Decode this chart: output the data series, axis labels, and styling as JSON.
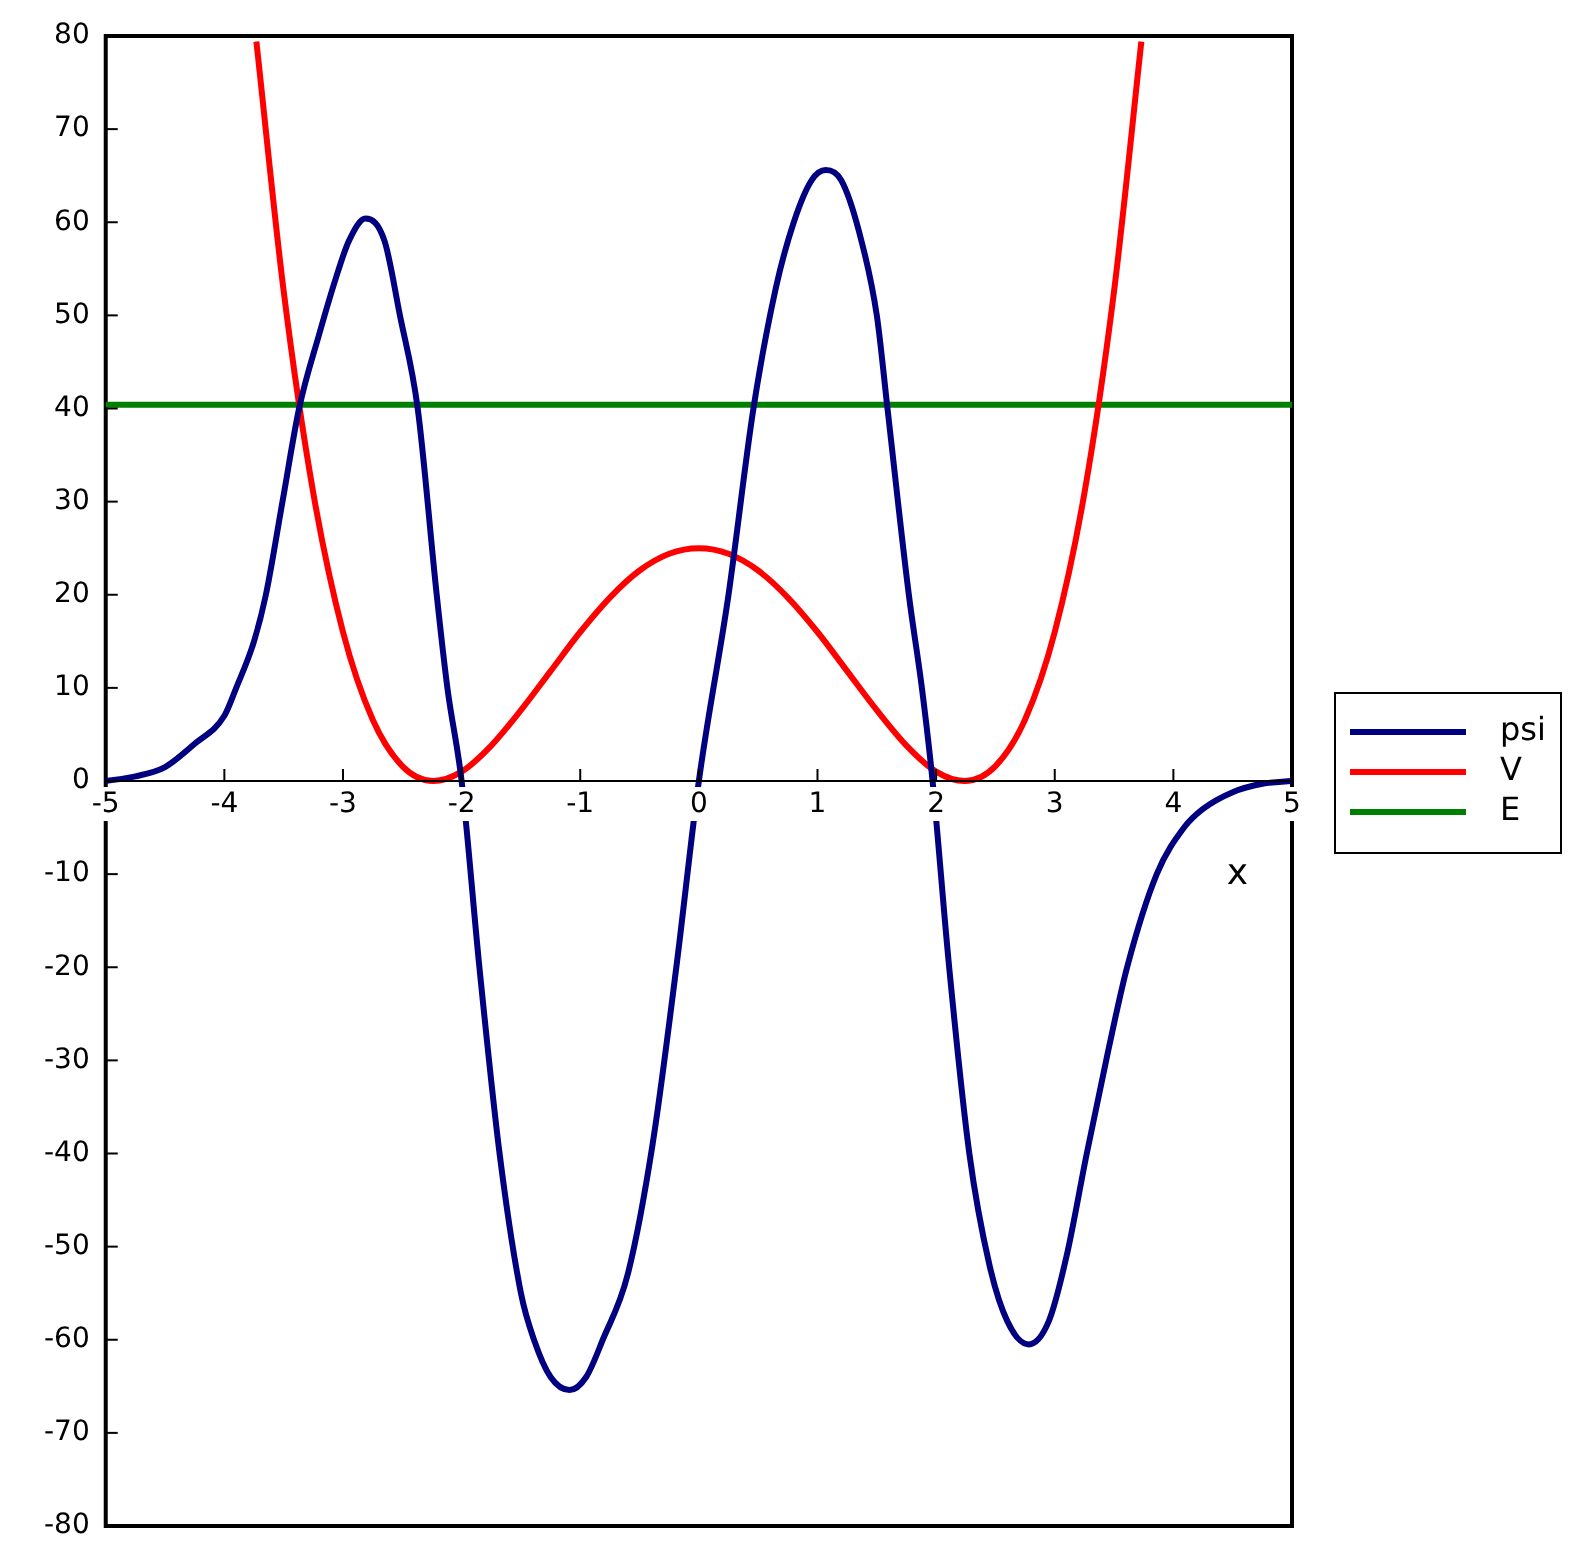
{
  "chart_data": {
    "type": "line",
    "xlabel": "x",
    "xlim": [
      -5,
      5
    ],
    "xticks": [
      -5,
      -4,
      -3,
      -2,
      -1,
      0,
      1,
      2,
      3,
      4,
      5
    ],
    "ylim": [
      -80,
      80
    ],
    "yticks": [
      -80,
      -70,
      -60,
      -50,
      -40,
      -30,
      -20,
      -10,
      0,
      10,
      20,
      30,
      40,
      50,
      60,
      70,
      80
    ],
    "legend": "right",
    "series": [
      {
        "name": "psi",
        "color": "#000080",
        "x": [
          -5,
          -4.75,
          -4.5,
          -4.25,
          -4,
          -3.9,
          -3.75,
          -3.65,
          -3.51,
          -3.37,
          -3.2,
          -3.06,
          -2.95,
          -2.81,
          -2.65,
          -2.52,
          -2.37,
          -2.21,
          -2.12,
          -2,
          -1.85,
          -1.68,
          -1.5,
          -1.39,
          -1.25,
          -1.09,
          -0.95,
          -0.81,
          -0.6,
          -0.39,
          -0.19,
          0,
          0.25,
          0.46,
          0.65,
          0.8,
          0.95,
          1.07,
          1.2,
          1.35,
          1.5,
          1.59,
          1.77,
          1.88,
          1.97,
          2.11,
          2.28,
          2.45,
          2.6,
          2.78,
          2.95,
          3.1,
          3.27,
          3.45,
          3.61,
          3.86,
          4.09,
          4.25,
          4.5,
          4.75,
          5
        ],
        "values": [
          0,
          0.5,
          1.5,
          4,
          7,
          10,
          15,
          20,
          30,
          40,
          48,
          54,
          58,
          60.4,
          58,
          50,
          40,
          20,
          10,
          0,
          -20,
          -40,
          -55,
          -60,
          -64,
          -65.4,
          -64,
          -60,
          -53,
          -39,
          -20,
          0,
          20,
          40,
          53,
          60,
          64.5,
          65.6,
          64.5,
          59,
          50,
          40,
          20,
          10,
          0,
          -20,
          -40,
          -52,
          -58,
          -60.5,
          -58,
          -51,
          -40,
          -29,
          -20,
          -10,
          -5,
          -3,
          -1.2,
          -0.3,
          0
        ]
      },
      {
        "name": "V",
        "color": "#ff0000",
        "x": [
          -3.73,
          -3.5,
          -3.25,
          -3,
          -2.75,
          -2.5,
          -2.24,
          -2,
          -1.75,
          -1.5,
          -1.25,
          -1,
          -0.75,
          -0.5,
          -0.25,
          0,
          0.25,
          0.5,
          0.75,
          1,
          1.25,
          1.5,
          1.75,
          2,
          2.24,
          2.5,
          2.75,
          3,
          3.25,
          3.5,
          3.73
        ],
        "values": [
          79.4,
          52.6,
          30.9,
          16,
          6.6,
          1.6,
          0,
          1,
          3.8,
          7.6,
          11.8,
          16,
          19.7,
          22.6,
          24.4,
          25,
          24.4,
          22.6,
          19.7,
          16,
          11.8,
          7.6,
          3.8,
          1,
          0,
          1.6,
          6.6,
          16,
          30.9,
          52.6,
          79.4
        ]
      },
      {
        "name": "E",
        "color": "#008000",
        "x": [
          -5,
          5
        ],
        "values": [
          40.4,
          40.4
        ]
      }
    ]
  }
}
